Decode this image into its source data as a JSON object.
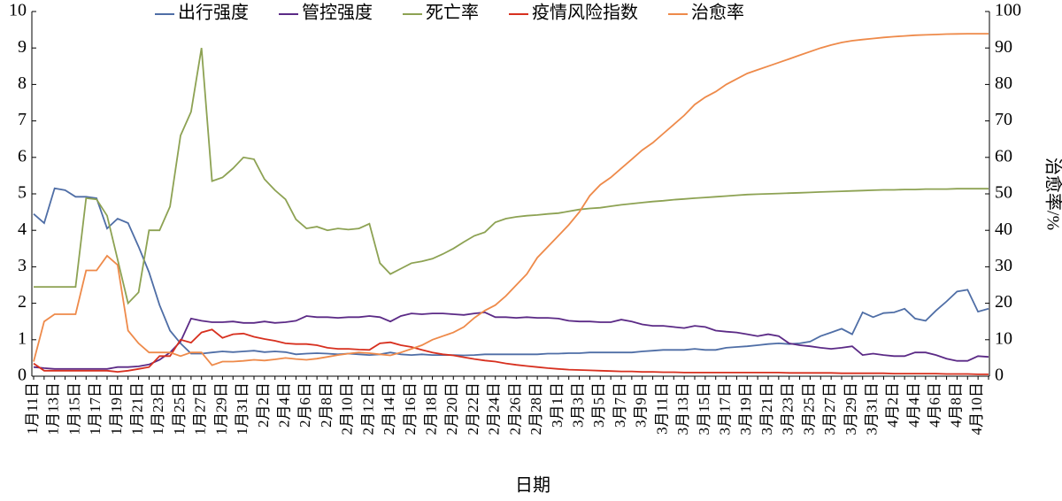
{
  "chart_data": {
    "type": "line",
    "x_label": "日期",
    "y2_label": "治愈率/%",
    "categories": [
      "1月11日",
      null,
      "1月13日",
      null,
      "1月15日",
      null,
      "1月17日",
      null,
      "1月19日",
      null,
      "1月21日",
      null,
      "1月23日",
      null,
      "1月25日",
      null,
      "1月27日",
      null,
      "1月29日",
      null,
      "1月31日",
      null,
      "2月2日",
      null,
      "2月4日",
      null,
      "2月6日",
      null,
      "2月8日",
      null,
      "2月10日",
      null,
      "2月12日",
      null,
      "2月14日",
      null,
      "2月16日",
      null,
      "2月18日",
      null,
      "2月20日",
      null,
      "2月22日",
      null,
      "2月24日",
      null,
      "2月26日",
      null,
      "2月28日",
      null,
      "3月1日",
      null,
      "3月3日",
      null,
      "3月5日",
      null,
      "3月7日",
      null,
      "3月9日",
      null,
      "3月11日",
      null,
      "3月13日",
      null,
      "3月15日",
      null,
      "3月17日",
      null,
      "3月19日",
      null,
      "3月21日",
      null,
      "3月23日",
      null,
      "3月25日",
      null,
      "3月27日",
      null,
      "3月29日",
      null,
      "3月31日",
      null,
      "4月2日",
      null,
      "4月4日",
      null,
      "4月6日",
      null,
      "4月8日",
      null,
      "4月10日",
      null
    ],
    "ylim": [
      0,
      10
    ],
    "yticks": [
      0,
      1,
      2,
      3,
      4,
      5,
      6,
      7,
      8,
      9,
      10
    ],
    "y2lim": [
      0,
      100
    ],
    "y2ticks": [
      0,
      10,
      20,
      30,
      40,
      50,
      60,
      70,
      80,
      90,
      100
    ],
    "legend": "top",
    "series": [
      {
        "name": "出行强度",
        "color": "#4f6ea6",
        "values": [
          4.45,
          4.2,
          5.15,
          5.1,
          4.92,
          4.92,
          4.88,
          4.05,
          4.32,
          4.2,
          3.55,
          2.85,
          1.95,
          1.25,
          0.9,
          0.62,
          0.62,
          0.65,
          0.68,
          0.66,
          0.68,
          0.7,
          0.66,
          0.68,
          0.66,
          0.6,
          0.62,
          0.63,
          0.62,
          0.6,
          0.62,
          0.6,
          0.58,
          0.6,
          0.65,
          0.6,
          0.58,
          0.6,
          0.58,
          0.58,
          0.58,
          0.57,
          0.58,
          0.6,
          0.6,
          0.6,
          0.6,
          0.6,
          0.6,
          0.62,
          0.62,
          0.63,
          0.63,
          0.65,
          0.65,
          0.65,
          0.65,
          0.65,
          0.68,
          0.7,
          0.72,
          0.72,
          0.72,
          0.75,
          0.72,
          0.72,
          0.78,
          0.8,
          0.82,
          0.85,
          0.88,
          0.9,
          0.88,
          0.9,
          0.95,
          1.1,
          1.2,
          1.3,
          1.15,
          1.75,
          1.62,
          1.73,
          1.75,
          1.85,
          1.58,
          1.52,
          1.8,
          2.05,
          2.32,
          2.37,
          1.77,
          1.85
        ]
      },
      {
        "name": "管控强度",
        "color": "#5b2a86",
        "values": [
          0.25,
          0.22,
          0.2,
          0.2,
          0.2,
          0.2,
          0.2,
          0.2,
          0.25,
          0.25,
          0.27,
          0.32,
          0.45,
          0.65,
          0.95,
          1.58,
          1.52,
          1.48,
          1.48,
          1.5,
          1.46,
          1.46,
          1.5,
          1.46,
          1.48,
          1.52,
          1.65,
          1.62,
          1.62,
          1.6,
          1.62,
          1.62,
          1.65,
          1.62,
          1.5,
          1.65,
          1.72,
          1.7,
          1.72,
          1.72,
          1.7,
          1.68,
          1.72,
          1.75,
          1.62,
          1.62,
          1.6,
          1.62,
          1.6,
          1.6,
          1.58,
          1.52,
          1.5,
          1.5,
          1.48,
          1.48,
          1.55,
          1.5,
          1.42,
          1.38,
          1.38,
          1.35,
          1.32,
          1.38,
          1.35,
          1.25,
          1.22,
          1.2,
          1.15,
          1.1,
          1.15,
          1.1,
          0.9,
          0.85,
          0.82,
          0.78,
          0.75,
          0.78,
          0.82,
          0.58,
          0.62,
          0.58,
          0.55,
          0.55,
          0.65,
          0.65,
          0.58,
          0.48,
          0.42,
          0.42,
          0.55,
          0.53
        ]
      },
      {
        "name": "死亡率",
        "color": "#8da253",
        "values": [
          2.45,
          2.45,
          2.45,
          2.45,
          2.45,
          4.88,
          4.85,
          4.4,
          3.2,
          2.0,
          2.3,
          4.0,
          4.0,
          4.65,
          6.6,
          7.25,
          9.0,
          5.35,
          5.45,
          5.7,
          6.0,
          5.95,
          5.4,
          5.1,
          4.85,
          4.3,
          4.05,
          4.1,
          4.0,
          4.05,
          4.02,
          4.05,
          4.18,
          3.1,
          2.8,
          2.95,
          3.1,
          3.15,
          3.22,
          3.35,
          3.5,
          3.68,
          3.85,
          3.95,
          4.22,
          4.32,
          4.37,
          4.4,
          4.42,
          4.45,
          4.47,
          4.52,
          4.57,
          4.6,
          4.62,
          4.66,
          4.7,
          4.73,
          4.76,
          4.79,
          4.81,
          4.84,
          4.86,
          4.88,
          4.9,
          4.92,
          4.94,
          4.96,
          4.98,
          4.99,
          5.0,
          5.01,
          5.02,
          5.03,
          5.04,
          5.05,
          5.06,
          5.07,
          5.08,
          5.09,
          5.1,
          5.11,
          5.11,
          5.12,
          5.12,
          5.13,
          5.13,
          5.13,
          5.14,
          5.14,
          5.14,
          5.14
        ]
      },
      {
        "name": "疫情风险指数",
        "color": "#d7301f",
        "values": [
          0.35,
          0.15,
          0.15,
          0.15,
          0.15,
          0.15,
          0.15,
          0.15,
          0.12,
          0.15,
          0.2,
          0.25,
          0.55,
          0.55,
          1.0,
          0.92,
          1.2,
          1.28,
          1.05,
          1.15,
          1.17,
          1.08,
          1.02,
          0.97,
          0.9,
          0.88,
          0.88,
          0.85,
          0.78,
          0.75,
          0.75,
          0.73,
          0.72,
          0.9,
          0.93,
          0.85,
          0.8,
          0.72,
          0.65,
          0.6,
          0.57,
          0.52,
          0.47,
          0.43,
          0.4,
          0.35,
          0.31,
          0.28,
          0.25,
          0.22,
          0.2,
          0.18,
          0.17,
          0.16,
          0.15,
          0.14,
          0.13,
          0.13,
          0.12,
          0.12,
          0.11,
          0.11,
          0.1,
          0.1,
          0.1,
          0.1,
          0.1,
          0.1,
          0.1,
          0.1,
          0.1,
          0.1,
          0.09,
          0.09,
          0.09,
          0.09,
          0.09,
          0.08,
          0.08,
          0.08,
          0.08,
          0.08,
          0.07,
          0.07,
          0.07,
          0.07,
          0.07,
          0.06,
          0.06,
          0.06,
          0.05,
          0.05
        ]
      },
      {
        "name": "治愈率",
        "color": "#ee8a4a",
        "axis": "y2",
        "values": [
          4,
          15,
          17,
          17,
          17,
          29,
          29,
          33,
          30.5,
          12.5,
          9,
          6.5,
          6.5,
          6.5,
          5.5,
          6.5,
          6.5,
          3,
          4,
          4,
          4.2,
          4.5,
          4.3,
          4.6,
          5,
          4.7,
          4.5,
          4.8,
          5.3,
          5.8,
          6.2,
          6.5,
          6.3,
          6,
          5.7,
          6.5,
          7.5,
          8.5,
          10,
          11,
          12,
          13.5,
          16,
          18,
          19.5,
          22,
          25,
          28,
          32.5,
          35.5,
          38.5,
          41.5,
          45,
          49.5,
          52.5,
          54.5,
          57,
          59.5,
          62,
          64,
          66.5,
          69,
          71.5,
          74.5,
          76.5,
          78,
          80,
          81.5,
          83,
          84,
          85,
          86,
          87,
          88,
          89,
          90,
          90.8,
          91.5,
          92,
          92.3,
          92.6,
          92.9,
          93.1,
          93.3,
          93.5,
          93.6,
          93.7,
          93.8,
          93.85,
          93.9,
          93.9,
          93.9
        ]
      }
    ]
  }
}
